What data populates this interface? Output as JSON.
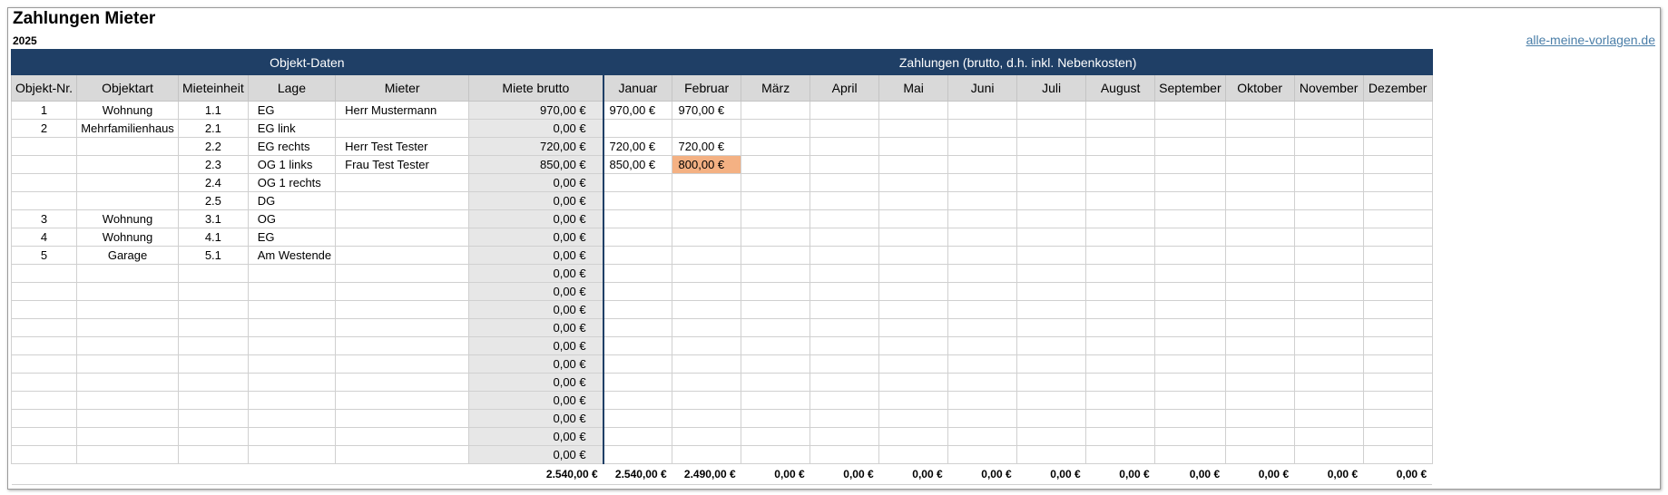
{
  "title": "Zahlungen Mieter",
  "year": "2025",
  "link": "alle-meine-vorlagen.de",
  "sections": {
    "left": "Objekt-Daten",
    "right": "Zahlungen (brutto, d.h. inkl. Nebenkosten)"
  },
  "columns": [
    "Objekt-Nr.",
    "Objektart",
    "Mieteinheit",
    "Lage",
    "Mieter",
    "Miete brutto",
    "Januar",
    "Februar",
    "März",
    "April",
    "Mai",
    "Juni",
    "Juli",
    "August",
    "September",
    "Oktober",
    "November",
    "Dezember"
  ],
  "rows": [
    [
      "1",
      "Wohnung",
      "1.1",
      "EG",
      "Herr Mustermann",
      "970,00 €",
      "970,00 €",
      "970,00 €",
      "",
      "",
      "",
      "",
      "",
      "",
      "",
      "",
      "",
      ""
    ],
    [
      "2",
      "Mehrfamilienhaus",
      "2.1",
      "EG link",
      "",
      "0,00 €",
      "",
      "",
      "",
      "",
      "",
      "",
      "",
      "",
      "",
      "",
      "",
      ""
    ],
    [
      "",
      "",
      "2.2",
      "EG rechts",
      "Herr Test Tester",
      "720,00 €",
      "720,00 €",
      "720,00 €",
      "",
      "",
      "",
      "",
      "",
      "",
      "",
      "",
      "",
      ""
    ],
    [
      "",
      "",
      "2.3",
      "OG 1 links",
      "Frau Test Tester",
      "850,00 €",
      "850,00 €",
      "800,00 €",
      "",
      "",
      "",
      "",
      "",
      "",
      "",
      "",
      "",
      ""
    ],
    [
      "",
      "",
      "2.4",
      "OG 1 rechts",
      "",
      "0,00 €",
      "",
      "",
      "",
      "",
      "",
      "",
      "",
      "",
      "",
      "",
      "",
      ""
    ],
    [
      "",
      "",
      "2.5",
      "DG",
      "",
      "0,00 €",
      "",
      "",
      "",
      "",
      "",
      "",
      "",
      "",
      "",
      "",
      "",
      ""
    ],
    [
      "3",
      "Wohnung",
      "3.1",
      "OG",
      "",
      "0,00 €",
      "",
      "",
      "",
      "",
      "",
      "",
      "",
      "",
      "",
      "",
      "",
      ""
    ],
    [
      "4",
      "Wohnung",
      "4.1",
      "EG",
      "",
      "0,00 €",
      "",
      "",
      "",
      "",
      "",
      "",
      "",
      "",
      "",
      "",
      "",
      ""
    ],
    [
      "5",
      "Garage",
      "5.1",
      "Am Westende",
      "",
      "0,00 €",
      "",
      "",
      "",
      "",
      "",
      "",
      "",
      "",
      "",
      "",
      "",
      ""
    ],
    [
      "",
      "",
      "",
      "",
      "",
      "0,00 €",
      "",
      "",
      "",
      "",
      "",
      "",
      "",
      "",
      "",
      "",
      "",
      ""
    ],
    [
      "",
      "",
      "",
      "",
      "",
      "0,00 €",
      "",
      "",
      "",
      "",
      "",
      "",
      "",
      "",
      "",
      "",
      "",
      ""
    ],
    [
      "",
      "",
      "",
      "",
      "",
      "0,00 €",
      "",
      "",
      "",
      "",
      "",
      "",
      "",
      "",
      "",
      "",
      "",
      ""
    ],
    [
      "",
      "",
      "",
      "",
      "",
      "0,00 €",
      "",
      "",
      "",
      "",
      "",
      "",
      "",
      "",
      "",
      "",
      "",
      ""
    ],
    [
      "",
      "",
      "",
      "",
      "",
      "0,00 €",
      "",
      "",
      "",
      "",
      "",
      "",
      "",
      "",
      "",
      "",
      "",
      ""
    ],
    [
      "",
      "",
      "",
      "",
      "",
      "0,00 €",
      "",
      "",
      "",
      "",
      "",
      "",
      "",
      "",
      "",
      "",
      "",
      ""
    ],
    [
      "",
      "",
      "",
      "",
      "",
      "0,00 €",
      "",
      "",
      "",
      "",
      "",
      "",
      "",
      "",
      "",
      "",
      "",
      ""
    ],
    [
      "",
      "",
      "",
      "",
      "",
      "0,00 €",
      "",
      "",
      "",
      "",
      "",
      "",
      "",
      "",
      "",
      "",
      "",
      ""
    ],
    [
      "",
      "",
      "",
      "",
      "",
      "0,00 €",
      "",
      "",
      "",
      "",
      "",
      "",
      "",
      "",
      "",
      "",
      "",
      ""
    ],
    [
      "",
      "",
      "",
      "",
      "",
      "0,00 €",
      "",
      "",
      "",
      "",
      "",
      "",
      "",
      "",
      "",
      "",
      "",
      ""
    ],
    [
      "",
      "",
      "",
      "",
      "",
      "0,00 €",
      "",
      "",
      "",
      "",
      "",
      "",
      "",
      "",
      "",
      "",
      "",
      ""
    ]
  ],
  "highlight": {
    "row": 3,
    "col": 7,
    "color": "#f4b183"
  },
  "totals": [
    "",
    "",
    "",
    "",
    "",
    "2.540,00 €",
    "2.540,00 €",
    "2.490,00 €",
    "0,00 €",
    "0,00 €",
    "0,00 €",
    "0,00 €",
    "0,00 €",
    "0,00 €",
    "0,00 €",
    "0,00 €",
    "0,00 €",
    "0,00 €"
  ],
  "colors": {
    "section_header": "#1f3f66",
    "column_header": "#d9d9d9",
    "rent_column": "#e7e7e7",
    "link": "#4a7ea8"
  }
}
